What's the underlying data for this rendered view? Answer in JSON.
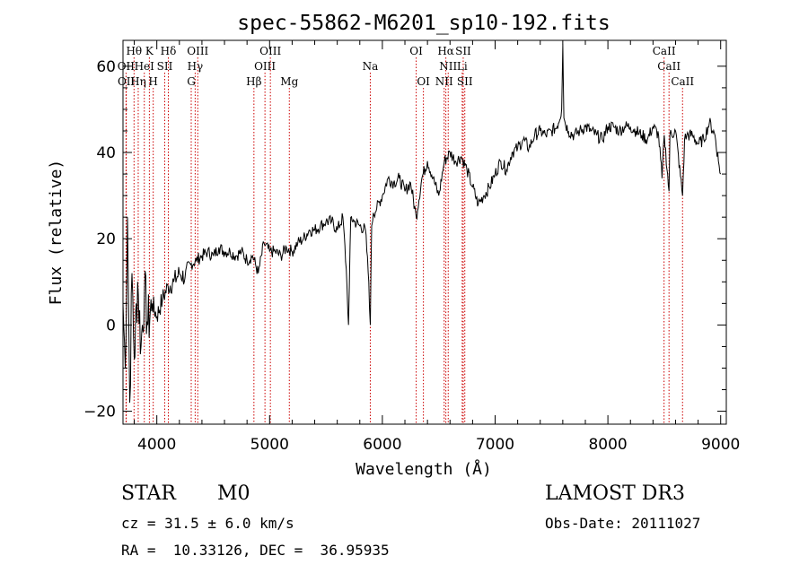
{
  "chart_data": {
    "type": "line",
    "title": "spec-55862-M6201_sp10-192.fits",
    "xlabel": "Wavelength (Å)",
    "ylabel": "Flux (relative)",
    "xlim": [
      3700,
      9050
    ],
    "ylim": [
      -23,
      66
    ],
    "xticks": [
      4000,
      5000,
      6000,
      7000,
      8000,
      9000
    ],
    "yticks": [
      -20,
      0,
      20,
      40,
      60
    ],
    "xtick_labels": [
      "4000",
      "5000",
      "6000",
      "7000",
      "8000",
      "9000"
    ],
    "ytick_labels": [
      "−20",
      "0",
      "20",
      "40",
      "60"
    ],
    "grid": false,
    "series": [
      {
        "name": "spectrum",
        "x": [
          3700,
          3720,
          3740,
          3760,
          3780,
          3800,
          3830,
          3860,
          3890,
          3920,
          3960,
          4000,
          4050,
          4100,
          4150,
          4200,
          4250,
          4300,
          4350,
          4400,
          4450,
          4500,
          4550,
          4600,
          4650,
          4700,
          4750,
          4800,
          4850,
          4900,
          4950,
          5000,
          5050,
          5100,
          5150,
          5200,
          5250,
          5300,
          5350,
          5400,
          5450,
          5500,
          5550,
          5600,
          5650,
          5680,
          5700,
          5720,
          5750,
          5800,
          5850,
          5880,
          5893,
          5905,
          5920,
          5950,
          6000,
          6050,
          6100,
          6150,
          6200,
          6250,
          6300,
          6350,
          6400,
          6450,
          6500,
          6550,
          6600,
          6650,
          6700,
          6750,
          6800,
          6850,
          6900,
          6950,
          7000,
          7050,
          7100,
          7150,
          7200,
          7250,
          7300,
          7350,
          7400,
          7450,
          7500,
          7550,
          7590,
          7600,
          7610,
          7620,
          7650,
          7700,
          7750,
          7800,
          7850,
          7900,
          7950,
          8000,
          8050,
          8100,
          8150,
          8200,
          8250,
          8300,
          8350,
          8400,
          8450,
          8480,
          8500,
          8542,
          8550,
          8600,
          8662,
          8680,
          8700,
          8750,
          8800,
          8850,
          8900,
          8950,
          8980,
          9000
        ],
        "y": [
          5,
          -10,
          25,
          -18,
          12,
          -8,
          10,
          -5,
          8,
          0,
          5,
          2,
          6,
          9,
          10,
          12,
          11,
          14,
          15,
          16,
          17,
          16,
          18,
          17,
          17,
          16,
          17,
          15,
          16,
          12,
          19,
          17,
          17,
          16,
          18,
          17,
          19,
          20,
          22,
          22,
          23,
          24,
          24,
          22,
          25,
          13,
          0,
          25,
          24,
          23,
          22,
          10,
          0,
          23,
          26,
          27,
          30,
          34,
          33,
          34,
          31,
          33,
          25,
          34,
          38,
          34,
          30,
          38,
          40,
          38,
          39,
          36,
          32,
          28,
          30,
          32,
          35,
          38,
          36,
          40,
          41,
          43,
          41,
          44,
          45,
          44,
          45,
          46,
          50,
          65,
          48,
          47,
          45,
          44,
          45,
          46,
          45,
          44,
          43,
          46,
          46,
          45,
          46,
          46,
          45,
          44,
          43,
          46,
          44,
          34,
          44,
          31,
          44,
          45,
          30,
          43,
          44,
          44,
          42,
          43,
          47,
          44,
          38,
          35
        ]
      }
    ],
    "emission_lines": [
      {
        "label": "Hθ",
        "wl": 3798,
        "row": 0
      },
      {
        "label": "K",
        "wl": 3934,
        "row": 0
      },
      {
        "label": "Hδ",
        "wl": 4102,
        "row": 0
      },
      {
        "label": "OIII",
        "wl": 4363,
        "row": 0
      },
      {
        "label": "OIII",
        "wl": 5007,
        "row": 0
      },
      {
        "label": "OI",
        "wl": 6300,
        "row": 0
      },
      {
        "label": "Hα",
        "wl": 6563,
        "row": 0
      },
      {
        "label": "SII",
        "wl": 6717,
        "row": 0
      },
      {
        "label": "CaII",
        "wl": 8498,
        "row": 0
      },
      {
        "label": "OII",
        "wl": 3727,
        "row": 1
      },
      {
        "label": "HeI",
        "wl": 3889,
        "row": 1
      },
      {
        "label": "SII",
        "wl": 4070,
        "row": 1
      },
      {
        "label": "Hγ",
        "wl": 4340,
        "row": 1
      },
      {
        "label": "OIII",
        "wl": 4959,
        "row": 1
      },
      {
        "label": "Na",
        "wl": 5893,
        "row": 1
      },
      {
        "label": "NII",
        "wl": 6584,
        "row": 1
      },
      {
        "label": "Li",
        "wl": 6708,
        "row": 1
      },
      {
        "label": "CaII",
        "wl": 8542,
        "row": 1
      },
      {
        "label": "OII",
        "wl": 3729,
        "row": 2
      },
      {
        "label": "Hη",
        "wl": 3835,
        "row": 2
      },
      {
        "label": "H",
        "wl": 3968,
        "row": 2
      },
      {
        "label": "G",
        "wl": 4305,
        "row": 2
      },
      {
        "label": "Hβ",
        "wl": 4861,
        "row": 2
      },
      {
        "label": "Mg",
        "wl": 5175,
        "row": 2
      },
      {
        "label": "OI",
        "wl": 6364,
        "row": 2
      },
      {
        "label": "NII",
        "wl": 6548,
        "row": 2
      },
      {
        "label": "SII",
        "wl": 6731,
        "row": 2
      },
      {
        "label": "CaII",
        "wl": 8662,
        "row": 2
      }
    ]
  },
  "info": {
    "object_class": "STAR",
    "subclass": "M0",
    "survey": "LAMOST DR3",
    "redshift": "cz = 31.5 ± 6.0 km/s",
    "obs_date": "Obs-Date: 20111027",
    "coords": "RA =  10.33126, DEC =  36.95935"
  },
  "colors": {
    "axes": "#000000",
    "spectrum": "#000000",
    "line_marker": "#cc0000"
  }
}
